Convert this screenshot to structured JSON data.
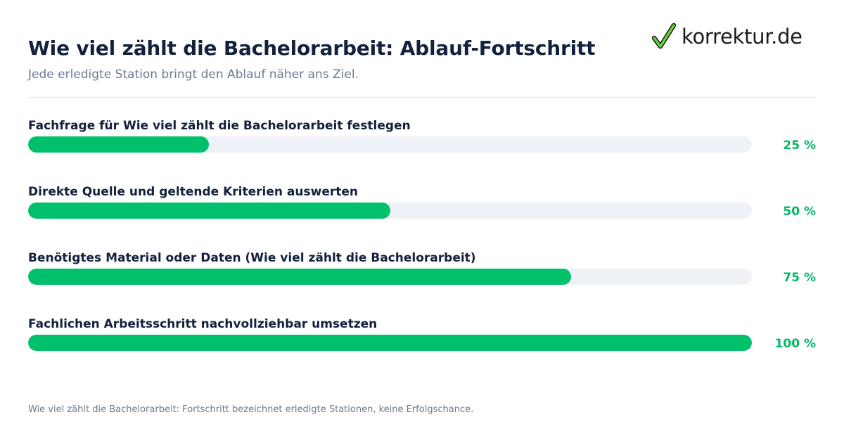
{
  "header": {
    "title": "Wie viel zählt die Bachelorarbeit: Ablauf-Fortschritt",
    "subtitle": "Jede erledigte Station bringt den Ablauf näher ans Ziel."
  },
  "logo": {
    "text": "korrektur.de",
    "icon": "checkmark-icon",
    "check_color": "#6cd43a"
  },
  "colors": {
    "accent": "#00c06b",
    "track": "#eef2f7",
    "title": "#14213d",
    "muted": "#6b7a90"
  },
  "chart_data": {
    "type": "bar",
    "orientation": "horizontal",
    "categories": [
      "Fachfrage für Wie viel zählt die Bachelorarbeit festlegen",
      "Direkte Quelle und geltende Kriterien auswerten",
      "Benötigtes Material oder Daten (Wie viel zählt die Bachelorarbeit)",
      "Fachlichen Arbeitsschritt nachvollziehbar umsetzen"
    ],
    "values": [
      25,
      50,
      75,
      100
    ],
    "value_labels": [
      "25 %",
      "50 %",
      "75 %",
      "100 %"
    ],
    "xlim": [
      0,
      100
    ],
    "grid": false
  },
  "footer": {
    "note": "Wie viel zählt die Bachelorarbeit: Fortschritt bezeichnet erledigte Stationen, keine Erfolgschance."
  }
}
